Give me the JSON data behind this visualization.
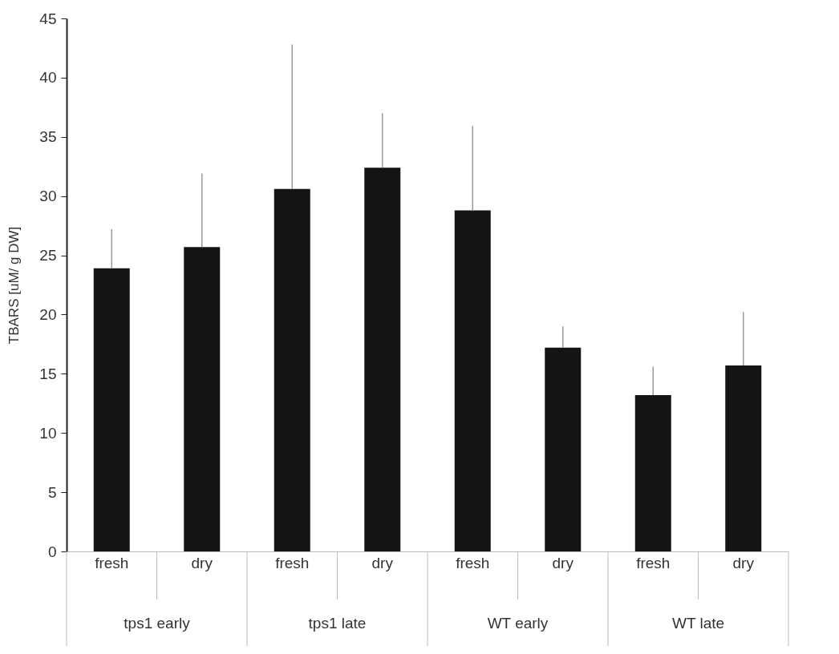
{
  "chart_data": {
    "type": "bar",
    "ylabel": "TBARS [uM/ g DW]",
    "categories": [
      "fresh",
      "dry",
      "fresh",
      "dry",
      "fresh",
      "dry",
      "fresh",
      "dry"
    ],
    "values": [
      23.9,
      25.7,
      30.6,
      32.4,
      28.8,
      17.2,
      13.2,
      15.7
    ],
    "errors": [
      [
        23.9,
        27.2
      ],
      [
        25.7,
        31.9
      ],
      [
        30.6,
        42.8
      ],
      [
        32.4,
        37.0
      ],
      [
        28.8,
        35.9
      ],
      [
        17.2,
        19.0
      ],
      [
        13.2,
        15.6
      ],
      [
        15.7,
        20.2
      ]
    ],
    "color": "#141414",
    "annotations": [
      "tps1 early",
      "tps1 late",
      "WT  early",
      "WT late"
    ],
    "ylim": [
      0,
      45
    ],
    "yticks": [
      0,
      5,
      10,
      15,
      20,
      25,
      30,
      35,
      40,
      45
    ],
    "grid": false
  }
}
